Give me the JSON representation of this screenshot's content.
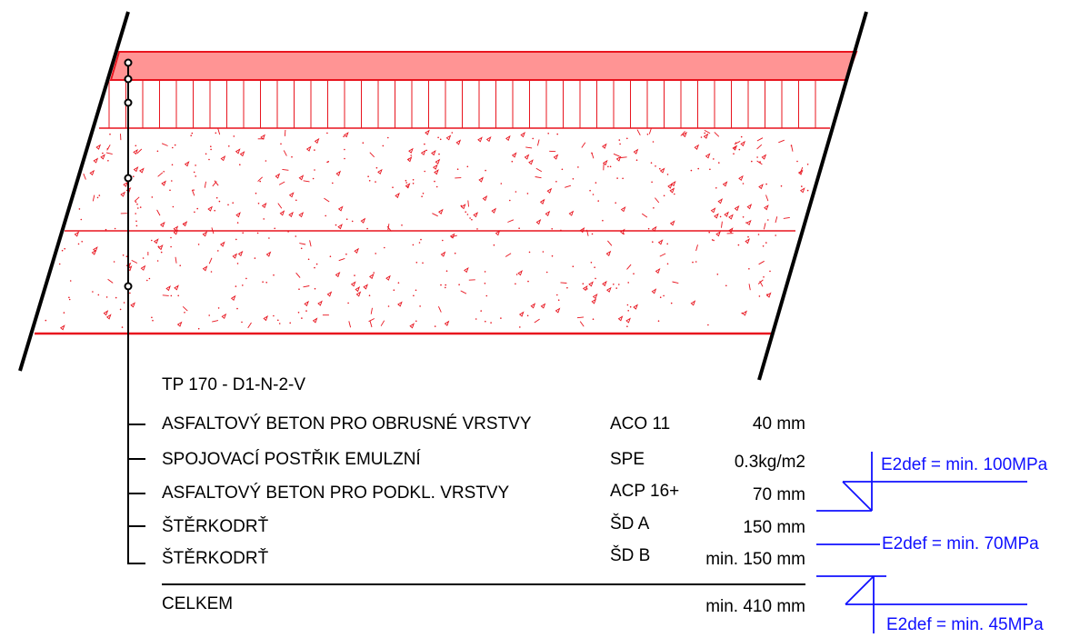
{
  "title": "TP 170 - D1-N-2-V",
  "layers": [
    {
      "name": "ASFALTOVÝ BETON PRO OBRUSNÉ VRSTVY",
      "code": "ACO 11",
      "value": "40 mm"
    },
    {
      "name": "SPOJOVACÍ POSTŘIK EMULZNÍ",
      "code": "SPE",
      "value": "0.3kg/m2"
    },
    {
      "name": "ASFALTOVÝ BETON PRO PODKL. VRSTVY",
      "code": "ACP 16+",
      "value": "70 mm"
    },
    {
      "name": "ŠTĚRKODRŤ",
      "code": "ŠD A",
      "value": "150 mm"
    },
    {
      "name": "ŠTĚRKODRŤ",
      "code": "ŠD B",
      "value": "min. 150 mm"
    }
  ],
  "total": {
    "label": "CELKEM",
    "value": "min. 410 mm"
  },
  "bearing": [
    {
      "text": "E2def = min. 100MPa"
    },
    {
      "text": "E2def = min. 70MPa"
    },
    {
      "text": "E2def = min. 45MPa"
    }
  ],
  "colors": {
    "line": "#e8141e",
    "surface_fill": "#ff9494",
    "leader": "#000000",
    "annotation": "#1010ff"
  }
}
